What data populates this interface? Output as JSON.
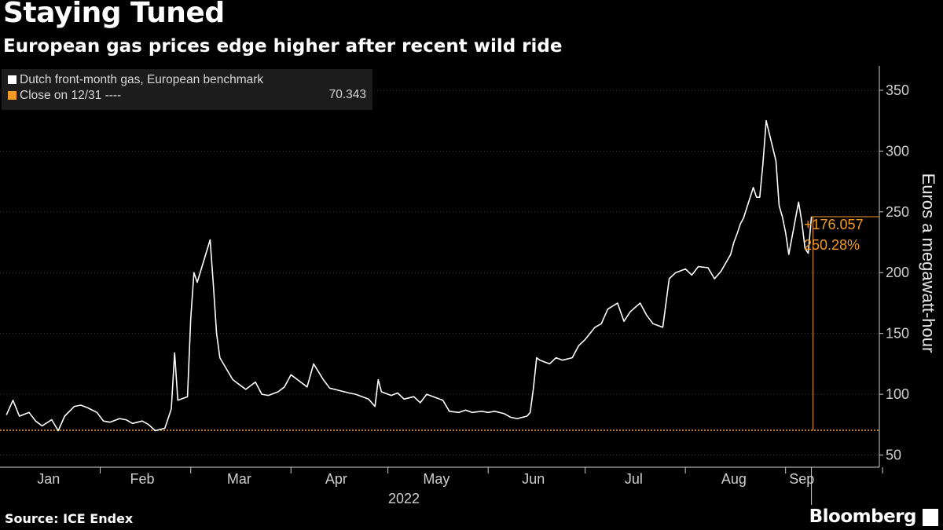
{
  "header": {
    "title": "Staying Tuned",
    "subtitle": "European gas prices edge higher after recent wild ride"
  },
  "legend": {
    "series_label": "Dutch front-month gas, European benchmark",
    "ref_label": "Close on 12/31 ----",
    "ref_value": "70.343"
  },
  "footer": {
    "source": "Source: ICE Endex",
    "brand": "Bloomberg"
  },
  "colors": {
    "series": "#ffffff",
    "reference": "#f39a24",
    "grid": "#3a3a3a",
    "axis": "#cfcfcf",
    "legend_bg": "#1c1c1c"
  },
  "chart_data": {
    "type": "line",
    "title": "Staying Tuned",
    "subtitle": "European gas prices edge higher after recent wild ride",
    "ylabel": "Euros a megawatt-hour",
    "xlabel": "",
    "x_year_label": "2022",
    "ylim": [
      40,
      370
    ],
    "yticks": [
      50,
      100,
      150,
      200,
      250,
      300,
      350
    ],
    "xlim": [
      "2022-01-01",
      "2022-09-30"
    ],
    "month_labels": [
      {
        "label": "Jan",
        "date": "2022-01-16"
      },
      {
        "label": "Feb",
        "date": "2022-02-14"
      },
      {
        "label": "Mar",
        "date": "2022-03-16"
      },
      {
        "label": "Apr",
        "date": "2022-04-15"
      },
      {
        "label": "May",
        "date": "2022-05-16"
      },
      {
        "label": "Jun",
        "date": "2022-06-15"
      },
      {
        "label": "Jul",
        "date": "2022-07-16"
      },
      {
        "label": "Aug",
        "date": "2022-08-16"
      },
      {
        "label": "Sep",
        "date": "2022-09-06"
      }
    ],
    "month_boundaries": [
      "2022-02-01",
      "2022-03-01",
      "2022-04-01",
      "2022-05-01",
      "2022-06-01",
      "2022-07-01",
      "2022-08-01",
      "2022-09-01",
      "2022-10-01"
    ],
    "reference_line": {
      "label": "Close on 12/31",
      "value": 70.343
    },
    "grid": true,
    "legend_position": "top-left",
    "annotation": {
      "change": "+176.057",
      "pct": "250.28%",
      "last_value": 246.4
    },
    "series": [
      {
        "name": "Dutch front-month gas, European benchmark",
        "color": "#ffffff",
        "points": [
          [
            "2022-01-03",
            83
          ],
          [
            "2022-01-05",
            95
          ],
          [
            "2022-01-07",
            82
          ],
          [
            "2022-01-10",
            85
          ],
          [
            "2022-01-12",
            78
          ],
          [
            "2022-01-14",
            74
          ],
          [
            "2022-01-17",
            79
          ],
          [
            "2022-01-19",
            70
          ],
          [
            "2022-01-21",
            82
          ],
          [
            "2022-01-24",
            90
          ],
          [
            "2022-01-26",
            91
          ],
          [
            "2022-01-28",
            89
          ],
          [
            "2022-01-31",
            85
          ],
          [
            "2022-02-02",
            78
          ],
          [
            "2022-02-04",
            77
          ],
          [
            "2022-02-07",
            80
          ],
          [
            "2022-02-09",
            79
          ],
          [
            "2022-02-11",
            76
          ],
          [
            "2022-02-14",
            78
          ],
          [
            "2022-02-16",
            75
          ],
          [
            "2022-02-18",
            70
          ],
          [
            "2022-02-21",
            72
          ],
          [
            "2022-02-22",
            80
          ],
          [
            "2022-02-23",
            88
          ],
          [
            "2022-02-24",
            134
          ],
          [
            "2022-02-25",
            95
          ],
          [
            "2022-02-28",
            98
          ],
          [
            "2022-03-01",
            162
          ],
          [
            "2022-03-02",
            200
          ],
          [
            "2022-03-03",
            192
          ],
          [
            "2022-03-07",
            227
          ],
          [
            "2022-03-08",
            190
          ],
          [
            "2022-03-09",
            150
          ],
          [
            "2022-03-10",
            130
          ],
          [
            "2022-03-14",
            112
          ],
          [
            "2022-03-16",
            108
          ],
          [
            "2022-03-18",
            104
          ],
          [
            "2022-03-21",
            110
          ],
          [
            "2022-03-23",
            100
          ],
          [
            "2022-03-25",
            99
          ],
          [
            "2022-03-28",
            102
          ],
          [
            "2022-03-30",
            106
          ],
          [
            "2022-04-01",
            116
          ],
          [
            "2022-04-04",
            110
          ],
          [
            "2022-04-06",
            106
          ],
          [
            "2022-04-08",
            125
          ],
          [
            "2022-04-11",
            112
          ],
          [
            "2022-04-13",
            105
          ],
          [
            "2022-04-19",
            101
          ],
          [
            "2022-04-21",
            100
          ],
          [
            "2022-04-25",
            96
          ],
          [
            "2022-04-27",
            90
          ],
          [
            "2022-04-28",
            112
          ],
          [
            "2022-04-29",
            102
          ],
          [
            "2022-05-02",
            99
          ],
          [
            "2022-05-04",
            101
          ],
          [
            "2022-05-06",
            96
          ],
          [
            "2022-05-09",
            98
          ],
          [
            "2022-05-11",
            93
          ],
          [
            "2022-05-13",
            100
          ],
          [
            "2022-05-16",
            97
          ],
          [
            "2022-05-18",
            95
          ],
          [
            "2022-05-20",
            86
          ],
          [
            "2022-05-23",
            85
          ],
          [
            "2022-05-25",
            87
          ],
          [
            "2022-05-27",
            85
          ],
          [
            "2022-05-30",
            86
          ],
          [
            "2022-06-01",
            85
          ],
          [
            "2022-06-03",
            86
          ],
          [
            "2022-06-06",
            84
          ],
          [
            "2022-06-08",
            81
          ],
          [
            "2022-06-10",
            80
          ],
          [
            "2022-06-13",
            82
          ],
          [
            "2022-06-14",
            85
          ],
          [
            "2022-06-15",
            105
          ],
          [
            "2022-06-16",
            130
          ],
          [
            "2022-06-17",
            128
          ],
          [
            "2022-06-20",
            125
          ],
          [
            "2022-06-22",
            130
          ],
          [
            "2022-06-24",
            128
          ],
          [
            "2022-06-27",
            130
          ],
          [
            "2022-06-29",
            140
          ],
          [
            "2022-07-01",
            145
          ],
          [
            "2022-07-04",
            155
          ],
          [
            "2022-07-06",
            158
          ],
          [
            "2022-07-08",
            170
          ],
          [
            "2022-07-11",
            175
          ],
          [
            "2022-07-13",
            160
          ],
          [
            "2022-07-15",
            168
          ],
          [
            "2022-07-18",
            175
          ],
          [
            "2022-07-20",
            165
          ],
          [
            "2022-07-22",
            158
          ],
          [
            "2022-07-25",
            155
          ],
          [
            "2022-07-26",
            175
          ],
          [
            "2022-07-27",
            195
          ],
          [
            "2022-07-29",
            200
          ],
          [
            "2022-08-01",
            203
          ],
          [
            "2022-08-03",
            198
          ],
          [
            "2022-08-05",
            205
          ],
          [
            "2022-08-08",
            204
          ],
          [
            "2022-08-10",
            195
          ],
          [
            "2022-08-12",
            201
          ],
          [
            "2022-08-15",
            215
          ],
          [
            "2022-08-16",
            225
          ],
          [
            "2022-08-17",
            232
          ],
          [
            "2022-08-18",
            240
          ],
          [
            "2022-08-19",
            245
          ],
          [
            "2022-08-22",
            270
          ],
          [
            "2022-08-23",
            262
          ],
          [
            "2022-08-24",
            262
          ],
          [
            "2022-08-25",
            290
          ],
          [
            "2022-08-26",
            325
          ],
          [
            "2022-08-29",
            292
          ],
          [
            "2022-08-30",
            255
          ],
          [
            "2022-08-31",
            246
          ],
          [
            "2022-09-01",
            233
          ],
          [
            "2022-09-02",
            215
          ],
          [
            "2022-09-05",
            258
          ],
          [
            "2022-09-06",
            242
          ],
          [
            "2022-09-07",
            220
          ],
          [
            "2022-09-08",
            216
          ],
          [
            "2022-09-09",
            246
          ]
        ]
      }
    ]
  }
}
